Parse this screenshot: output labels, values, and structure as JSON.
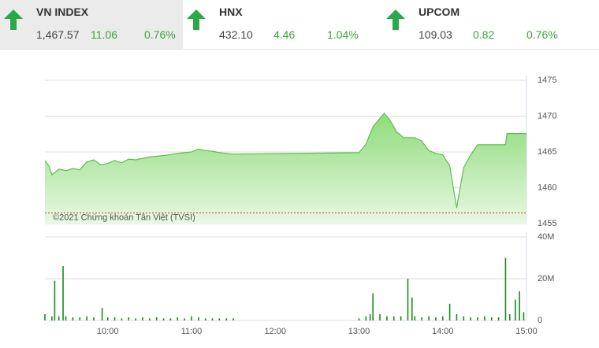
{
  "indices": [
    {
      "name": "VN INDEX",
      "value": "1,467.57",
      "change": "11.06",
      "percent": "0.76%"
    },
    {
      "name": "HNX",
      "value": "432.10",
      "change": "4.46",
      "percent": "1.04%"
    },
    {
      "name": "UPCOM",
      "value": "109.03",
      "change": "0.82",
      "percent": "0.76%"
    }
  ],
  "chart_data": [
    {
      "type": "area",
      "color": "#5cc04a",
      "annotation": "©2021 Chứng khoán Tân Việt (TVSI)",
      "reference_line": 1456.5,
      "reference_color": "#c0392b",
      "x": [
        "09:15",
        "09:18",
        "09:20",
        "09:25",
        "09:30",
        "09:35",
        "09:40",
        "09:45",
        "09:50",
        "09:55",
        "10:00",
        "10:05",
        "10:10",
        "10:15",
        "10:20",
        "10:30",
        "10:40",
        "10:50",
        "11:00",
        "11:05",
        "11:10",
        "11:15",
        "11:20",
        "11:25",
        "11:30",
        "13:00",
        "13:05",
        "13:10",
        "13:15",
        "13:18",
        "13:22",
        "13:27",
        "13:32",
        "13:40",
        "13:45",
        "13:50",
        "13:55",
        "14:00",
        "14:05",
        "14:08",
        "14:10",
        "14:12",
        "14:15",
        "14:20",
        "14:25",
        "14:30",
        "14:45",
        "14:46",
        "15:00"
      ],
      "values": [
        1463.8,
        1463.0,
        1461.8,
        1462.6,
        1462.4,
        1462.7,
        1462.5,
        1463.6,
        1463.9,
        1463.2,
        1463.4,
        1463.8,
        1463.5,
        1464.0,
        1463.9,
        1464.3,
        1464.5,
        1464.8,
        1465.0,
        1465.4,
        1465.2,
        1465.1,
        1464.9,
        1464.8,
        1464.7,
        1464.9,
        1466.1,
        1468.5,
        1469.7,
        1470.4,
        1469.5,
        1467.8,
        1467.0,
        1467.0,
        1466.5,
        1465.2,
        1464.8,
        1464.6,
        1463.1,
        1459.5,
        1457.2,
        1459.5,
        1462.8,
        1464.6,
        1466.0,
        1466.0,
        1466.0,
        1467.57,
        1467.57
      ],
      "xlim": [
        "09:15",
        "15:00"
      ],
      "ylim": [
        1455,
        1475
      ],
      "yticks": [
        1455,
        1460,
        1465,
        1470,
        1475
      ],
      "grid": true
    },
    {
      "type": "bar",
      "color": "#1a8a1a",
      "x": [
        "09:15",
        "09:20",
        "09:22",
        "09:25",
        "09:28",
        "09:30",
        "09:35",
        "09:40",
        "09:45",
        "09:50",
        "09:56",
        "10:00",
        "10:05",
        "10:10",
        "10:15",
        "10:20",
        "10:25",
        "10:30",
        "10:35",
        "10:40",
        "10:45",
        "10:50",
        "10:55",
        "11:00",
        "11:05",
        "11:10",
        "11:15",
        "11:20",
        "11:25",
        "11:30",
        "13:00",
        "13:05",
        "13:08",
        "13:10",
        "13:15",
        "13:20",
        "13:25",
        "13:30",
        "13:35",
        "13:38",
        "13:40",
        "13:45",
        "13:50",
        "13:55",
        "14:00",
        "14:05",
        "14:10",
        "14:15",
        "14:20",
        "14:25",
        "14:30",
        "14:35",
        "14:40",
        "14:45",
        "14:48",
        "14:52",
        "14:55",
        "14:58"
      ],
      "values": [
        3000000,
        2000000,
        19000000,
        2000000,
        26000000,
        2000000,
        1500000,
        1500000,
        2000000,
        1500000,
        6000000,
        1500000,
        1500000,
        1000000,
        1500000,
        1000000,
        1500000,
        1000000,
        1500000,
        1000000,
        1000000,
        1500000,
        1000000,
        2000000,
        1500000,
        1000000,
        1000000,
        1000000,
        1000000,
        1000000,
        1000000,
        2000000,
        3000000,
        13000000,
        3000000,
        2000000,
        2000000,
        2000000,
        20000000,
        11000000,
        2000000,
        1500000,
        2000000,
        1500000,
        2000000,
        8000000,
        3000000,
        2000000,
        1500000,
        1500000,
        2000000,
        1500000,
        1500000,
        30000000,
        3000000,
        10000000,
        14000000,
        4000000
      ],
      "xlim": [
        "09:15",
        "15:00"
      ],
      "ylim": [
        0,
        40000000
      ],
      "yticks": [
        0,
        {
          "value": 20000000,
          "label": "20M"
        },
        {
          "value": 40000000,
          "label": "40M"
        }
      ],
      "xticks": [
        "10:00",
        "11:00",
        "12:00",
        "13:00",
        "14:00",
        "15:00"
      ],
      "grid": true
    }
  ]
}
